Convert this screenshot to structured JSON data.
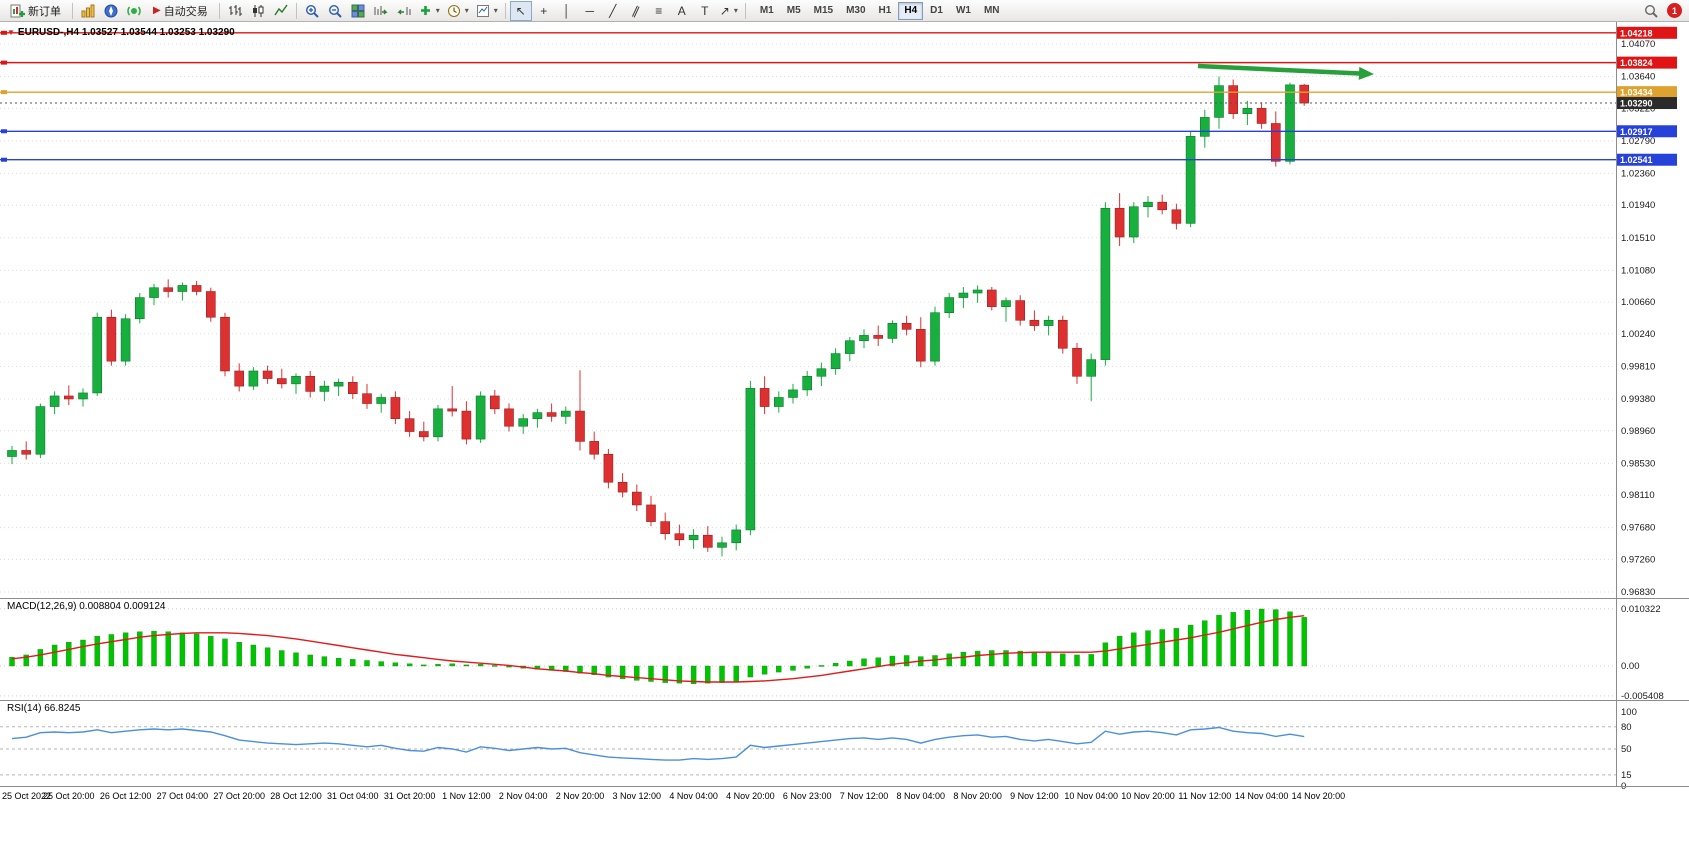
{
  "toolbar": {
    "new_order_label": "新订单",
    "auto_trading_label": "自动交易",
    "timeframes": [
      "M1",
      "M5",
      "M15",
      "M30",
      "H1",
      "H4",
      "D1",
      "W1",
      "MN"
    ],
    "active_timeframe": "H4",
    "notification_count": "1",
    "tool_glyphs": {
      "cursor": "↖",
      "crosshair": "+",
      "vline": "│",
      "hline": "─",
      "trendline": "╱",
      "channel": "∥",
      "fibonacci": "≡",
      "text": "A",
      "label": "T",
      "arrows": "↗",
      "dropdown": "▾"
    }
  },
  "chart_data": {
    "type": "candlestick",
    "symbol": "EURUSD-,H4",
    "header": "EURUSD-,H4  1.03527 1.03544 1.03253 1.03290",
    "bull_color": "#17af3d",
    "bear_color": "#dd3030",
    "price_axis_labels": [
      "1.04070",
      "1.03640",
      "1.03220",
      "1.02790",
      "1.02360",
      "1.01940",
      "1.01510",
      "1.01080",
      "1.00660",
      "1.00240",
      "0.99810",
      "0.99380",
      "0.98960",
      "0.98530",
      "0.98110",
      "0.97680",
      "0.97260",
      "0.96830"
    ],
    "hlines": [
      {
        "price": 1.04218,
        "label": "1.04218",
        "color": "#e01414"
      },
      {
        "price": 1.03824,
        "label": "1.03824",
        "color": "#e01414"
      },
      {
        "price": 1.03434,
        "label": "1.03434",
        "color": "#dfa22e"
      },
      {
        "price": 1.02917,
        "label": "1.02917",
        "color": "#2742d8"
      },
      {
        "price": 1.02541,
        "label": "1.02541",
        "color": "#2742d8"
      }
    ],
    "current_price": {
      "price": 1.0329,
      "label": "1.03290",
      "badge_color": "#2b2b2b",
      "line_color": "#555555"
    },
    "arrow": {
      "color": "#27a03c"
    },
    "candles": [
      [
        0.9862,
        0.9876,
        0.9852,
        0.987
      ],
      [
        0.987,
        0.9882,
        0.9858,
        0.9865
      ],
      [
        0.9865,
        0.9932,
        0.986,
        0.9928
      ],
      [
        0.9928,
        0.9948,
        0.9918,
        0.9942
      ],
      [
        0.9942,
        0.9956,
        0.993,
        0.9938
      ],
      [
        0.9938,
        0.9952,
        0.9928,
        0.9946
      ],
      [
        0.9946,
        1.0052,
        0.9942,
        1.0046
      ],
      [
        1.0046,
        1.0056,
        0.9982,
        0.9988
      ],
      [
        0.9988,
        1.005,
        0.9982,
        1.0044
      ],
      [
        1.0044,
        1.0078,
        1.0038,
        1.0072
      ],
      [
        1.0072,
        1.009,
        1.0062,
        1.0085
      ],
      [
        1.0085,
        1.0096,
        1.0072,
        1.008
      ],
      [
        1.008,
        1.0092,
        1.0068,
        1.0088
      ],
      [
        1.0088,
        1.0094,
        1.0075,
        1.008
      ],
      [
        1.008,
        1.0085,
        1.004,
        1.0046
      ],
      [
        1.0046,
        1.0052,
        0.9968,
        0.9975
      ],
      [
        0.9975,
        0.9985,
        0.9948,
        0.9955
      ],
      [
        0.9955,
        0.998,
        0.995,
        0.9975
      ],
      [
        0.9975,
        0.9982,
        0.9958,
        0.9965
      ],
      [
        0.9965,
        0.9978,
        0.9952,
        0.9958
      ],
      [
        0.9958,
        0.9972,
        0.9945,
        0.9968
      ],
      [
        0.9968,
        0.9975,
        0.994,
        0.9948
      ],
      [
        0.9948,
        0.9962,
        0.9935,
        0.9955
      ],
      [
        0.9955,
        0.9965,
        0.9942,
        0.996
      ],
      [
        0.996,
        0.9968,
        0.9938,
        0.9945
      ],
      [
        0.9945,
        0.9958,
        0.9925,
        0.9932
      ],
      [
        0.9932,
        0.9945,
        0.992,
        0.994
      ],
      [
        0.994,
        0.9948,
        0.9905,
        0.9912
      ],
      [
        0.9912,
        0.9922,
        0.9888,
        0.9895
      ],
      [
        0.9895,
        0.9908,
        0.9882,
        0.9888
      ],
      [
        0.9888,
        0.993,
        0.9882,
        0.9925
      ],
      [
        0.9925,
        0.9955,
        0.9915,
        0.9922
      ],
      [
        0.9922,
        0.9935,
        0.9878,
        0.9885
      ],
      [
        0.9885,
        0.9948,
        0.988,
        0.9942
      ],
      [
        0.9942,
        0.995,
        0.9918,
        0.9925
      ],
      [
        0.9925,
        0.9932,
        0.9895,
        0.9902
      ],
      [
        0.9902,
        0.9918,
        0.9892,
        0.9912
      ],
      [
        0.9912,
        0.9925,
        0.99,
        0.992
      ],
      [
        0.992,
        0.9932,
        0.9908,
        0.9915
      ],
      [
        0.9915,
        0.9928,
        0.9905,
        0.9922
      ],
      [
        0.9922,
        0.9976,
        0.987,
        0.9882
      ],
      [
        0.9882,
        0.9895,
        0.9858,
        0.9865
      ],
      [
        0.9865,
        0.9872,
        0.982,
        0.9828
      ],
      [
        0.9828,
        0.984,
        0.9808,
        0.9815
      ],
      [
        0.9815,
        0.9825,
        0.979,
        0.9798
      ],
      [
        0.9798,
        0.981,
        0.977,
        0.9776
      ],
      [
        0.9776,
        0.9788,
        0.9752,
        0.976
      ],
      [
        0.976,
        0.9772,
        0.9744,
        0.9752
      ],
      [
        0.9752,
        0.9766,
        0.974,
        0.9758
      ],
      [
        0.9758,
        0.977,
        0.9736,
        0.9742
      ],
      [
        0.9742,
        0.9756,
        0.973,
        0.9748
      ],
      [
        0.9748,
        0.9772,
        0.9738,
        0.9765
      ],
      [
        0.9765,
        0.9962,
        0.9758,
        0.9952
      ],
      [
        0.9952,
        0.9968,
        0.9918,
        0.9928
      ],
      [
        0.9928,
        0.9948,
        0.992,
        0.994
      ],
      [
        0.994,
        0.9958,
        0.9932,
        0.995
      ],
      [
        0.995,
        0.9975,
        0.9942,
        0.9968
      ],
      [
        0.9968,
        0.9986,
        0.9955,
        0.9978
      ],
      [
        0.9978,
        1.0005,
        0.997,
        0.9998
      ],
      [
        0.9998,
        1.002,
        0.9988,
        1.0015
      ],
      [
        1.0015,
        1.003,
        1.0005,
        1.0022
      ],
      [
        1.0022,
        1.0035,
        1.0008,
        1.0018
      ],
      [
        1.0018,
        1.0042,
        1.0012,
        1.0038
      ],
      [
        1.0038,
        1.0048,
        1.0022,
        1.003
      ],
      [
        1.003,
        1.0046,
        0.998,
        0.9988
      ],
      [
        0.9988,
        1.006,
        0.9982,
        1.0052
      ],
      [
        1.0052,
        1.0078,
        1.0045,
        1.0072
      ],
      [
        1.0072,
        1.0086,
        1.0058,
        1.0078
      ],
      [
        1.0078,
        1.0088,
        1.0065,
        1.0082
      ],
      [
        1.0082,
        1.0086,
        1.0055,
        1.006
      ],
      [
        1.006,
        1.0072,
        1.004,
        1.0068
      ],
      [
        1.0068,
        1.0075,
        1.0035,
        1.0042
      ],
      [
        1.0042,
        1.0055,
        1.0028,
        1.0035
      ],
      [
        1.0035,
        1.0048,
        1.0022,
        1.0042
      ],
      [
        1.0042,
        1.0048,
        0.9998,
        1.0005
      ],
      [
        1.0005,
        1.0012,
        0.9958,
        0.9968
      ],
      [
        0.9968,
        0.9998,
        0.9935,
        0.999
      ],
      [
        0.999,
        1.0198,
        0.9982,
        1.019
      ],
      [
        1.019,
        1.021,
        1.014,
        1.0152
      ],
      [
        1.0152,
        1.0198,
        1.0144,
        1.0192
      ],
      [
        1.0192,
        1.0206,
        1.0178,
        1.0198
      ],
      [
        1.0198,
        1.0208,
        1.0182,
        1.0188
      ],
      [
        1.0188,
        1.0196,
        1.0162,
        1.017
      ],
      [
        1.017,
        1.0292,
        1.0165,
        1.0285
      ],
      [
        1.0285,
        1.032,
        1.027,
        1.031
      ],
      [
        1.031,
        1.0364,
        1.0295,
        1.0352
      ],
      [
        1.0352,
        1.036,
        1.0308,
        1.0315
      ],
      [
        1.0315,
        1.0332,
        1.03,
        1.0322
      ],
      [
        1.0322,
        1.033,
        1.0295,
        1.0302
      ],
      [
        1.0302,
        1.0318,
        1.0245,
        1.0252
      ],
      [
        1.0252,
        1.0356,
        1.0248,
        1.0353
      ],
      [
        1.03527,
        1.03544,
        1.03253,
        1.0329
      ]
    ],
    "macd": {
      "label": "MACD(12,26,9) 0.008804 0.009124",
      "scale_labels": [
        "0.010322",
        "0.00",
        "-0.005408"
      ],
      "hist_color": "#00c400",
      "signal_color": "#e21a1a",
      "histogram": [
        0.0016,
        0.002,
        0.003,
        0.0038,
        0.0043,
        0.0047,
        0.0054,
        0.0057,
        0.006,
        0.0062,
        0.0063,
        0.0062,
        0.006,
        0.0058,
        0.0054,
        0.0049,
        0.0043,
        0.0038,
        0.0033,
        0.0028,
        0.0024,
        0.002,
        0.0017,
        0.0014,
        0.0012,
        0.001,
        0.0008,
        0.0006,
        0.0004,
        0.0002,
        0.0003,
        0.0004,
        0.0002,
        0.0003,
        0.0001,
        -0.0002,
        -0.0004,
        -0.0006,
        -0.0008,
        -0.001,
        -0.0013,
        -0.0016,
        -0.002,
        -0.0023,
        -0.0026,
        -0.0028,
        -0.003,
        -0.0031,
        -0.0032,
        -0.0031,
        -0.003,
        -0.0028,
        -0.002,
        -0.0015,
        -0.0011,
        -0.0008,
        -0.0004,
        0.0001,
        0.0005,
        0.0009,
        0.0013,
        0.0015,
        0.0018,
        0.0019,
        0.0017,
        0.0019,
        0.0022,
        0.0025,
        0.0027,
        0.0028,
        0.0028,
        0.0027,
        0.0025,
        0.0024,
        0.0022,
        0.002,
        0.0021,
        0.0042,
        0.0054,
        0.006,
        0.0064,
        0.0066,
        0.0068,
        0.0074,
        0.0082,
        0.0092,
        0.0097,
        0.0101,
        0.0103,
        0.0102,
        0.0098,
        0.0088
      ],
      "signal": [
        0.0013,
        0.0016,
        0.002,
        0.0025,
        0.003,
        0.0035,
        0.004,
        0.0044,
        0.0048,
        0.0052,
        0.0055,
        0.0057,
        0.0059,
        0.006,
        0.006,
        0.006,
        0.0059,
        0.0057,
        0.0055,
        0.0052,
        0.0049,
        0.0045,
        0.0041,
        0.0037,
        0.0033,
        0.0029,
        0.0025,
        0.0021,
        0.0018,
        0.0015,
        0.0012,
        0.0009,
        0.0007,
        0.0005,
        0.0003,
        0.0001,
        -0.0002,
        -0.0005,
        -0.0007,
        -0.0009,
        -0.0012,
        -0.0014,
        -0.0017,
        -0.0019,
        -0.0021,
        -0.0023,
        -0.0025,
        -0.0027,
        -0.0028,
        -0.0029,
        -0.0029,
        -0.0029,
        -0.0028,
        -0.0027,
        -0.0025,
        -0.0023,
        -0.002,
        -0.0017,
        -0.0013,
        -0.0009,
        -0.0005,
        -0.0001,
        0.0003,
        0.0006,
        0.0009,
        0.0011,
        0.0014,
        0.0016,
        0.0019,
        0.0021,
        0.0023,
        0.0024,
        0.0025,
        0.0025,
        0.0025,
        0.0025,
        0.0025,
        0.0027,
        0.0031,
        0.0035,
        0.0039,
        0.0043,
        0.0047,
        0.0051,
        0.0056,
        0.0061,
        0.0067,
        0.0073,
        0.0079,
        0.0084,
        0.0088,
        0.0091
      ]
    },
    "rsi": {
      "label": "RSI(14) 66.8245",
      "scale_labels": [
        "100",
        "80",
        "50",
        "15",
        "0"
      ],
      "level_lines": [
        80,
        50,
        15
      ],
      "line_color": "#4a8fdd",
      "values": [
        64,
        66,
        72,
        73,
        72,
        73,
        76,
        72,
        74,
        76,
        77,
        76,
        77,
        75,
        73,
        68,
        62,
        60,
        58,
        57,
        56,
        57,
        58,
        57,
        55,
        53,
        55,
        51,
        48,
        47,
        52,
        50,
        46,
        53,
        51,
        48,
        50,
        52,
        50,
        51,
        45,
        42,
        39,
        38,
        37,
        36,
        35,
        35,
        37,
        36,
        37,
        39,
        55,
        52,
        54,
        56,
        58,
        60,
        62,
        64,
        65,
        63,
        65,
        63,
        58,
        63,
        66,
        68,
        69,
        66,
        67,
        63,
        61,
        63,
        60,
        57,
        59,
        74,
        70,
        73,
        74,
        72,
        69,
        76,
        77,
        79,
        74,
        72,
        71,
        67,
        70,
        66.8
      ]
    },
    "time_labels": [
      "25 Oct 2022",
      "25 Oct 20:00",
      "26 Oct 12:00",
      "27 Oct 04:00",
      "27 Oct 20:00",
      "28 Oct 12:00",
      "31 Oct 04:00",
      "31 Oct 20:00",
      "1 Nov 12:00",
      "2 Nov 04:00",
      "2 Nov 20:00",
      "3 Nov 12:00",
      "4 Nov 04:00",
      "4 Nov 20:00",
      "6 Nov 23:00",
      "7 Nov 12:00",
      "8 Nov 04:00",
      "8 Nov 20:00",
      "9 Nov 12:00",
      "10 Nov 04:00",
      "10 Nov 20:00",
      "11 Nov 12:00",
      "14 Nov 04:00",
      "14 Nov 20:00"
    ]
  }
}
